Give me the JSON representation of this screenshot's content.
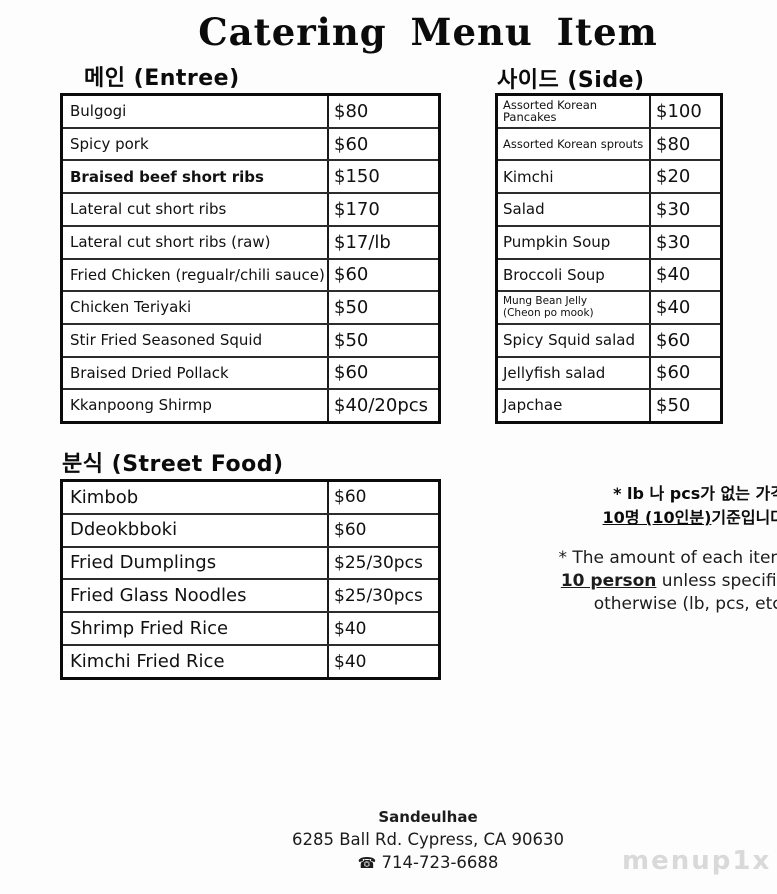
{
  "title": "Catering Menu Item",
  "sections": {
    "entree": {
      "header": "메인 (Entree)",
      "items": [
        {
          "name": "Bulgogi",
          "price": "$80"
        },
        {
          "name": "Spicy pork",
          "price": "$60"
        },
        {
          "name": "Braised beef short ribs",
          "price": "$150"
        },
        {
          "name": "Lateral cut short ribs",
          "price": "$170"
        },
        {
          "name": "Lateral cut short ribs (raw)",
          "price": "$17/lb"
        },
        {
          "name": "Fried Chicken (regualr/chili sauce)",
          "price": "$60"
        },
        {
          "name": "Chicken Teriyaki",
          "price": "$50"
        },
        {
          "name": "Stir Fried Seasoned Squid",
          "price": "$50"
        },
        {
          "name": "Braised Dried Pollack",
          "price": "$60"
        },
        {
          "name": "Kkanpoong Shirmp",
          "price": "$40/20pcs"
        }
      ]
    },
    "side": {
      "header": "사이드 (Side)",
      "items": [
        {
          "name": "Assorted Korean Pancakes",
          "price": "$100"
        },
        {
          "name": "Assorted Korean sprouts",
          "price": "$80"
        },
        {
          "name": "Kimchi",
          "price": "$20"
        },
        {
          "name": "Salad",
          "price": "$30"
        },
        {
          "name": "Pumpkin Soup",
          "price": "$30"
        },
        {
          "name": "Broccoli Soup",
          "price": "$40"
        },
        {
          "name": "Mung Bean Jelly\n(Cheon po mook)",
          "price": "$40"
        },
        {
          "name": "Spicy Squid salad",
          "price": "$60"
        },
        {
          "name": "Jellyfish salad",
          "price": "$60"
        },
        {
          "name": "Japchae",
          "price": "$50"
        }
      ]
    },
    "street": {
      "header": "분식 (Street Food)",
      "items": [
        {
          "name": "Kimbob",
          "price": "$60"
        },
        {
          "name": "Ddeokbboki",
          "price": "$60"
        },
        {
          "name": "Fried Dumplings",
          "price": "$25/30pcs"
        },
        {
          "name": "Fried Glass Noodles",
          "price": "$25/30pcs"
        },
        {
          "name": "Shrimp Fried Rice",
          "price": "$40"
        },
        {
          "name": "Kimchi Fried Rice",
          "price": "$40"
        }
      ]
    }
  },
  "notes": {
    "korean": {
      "line1": "* lb 나 pcs가 없는 가격",
      "line2_underline": "10명 (10인분)",
      "line2_rest": "기준입니다"
    },
    "english": {
      "line1": "* The amount of each item",
      "line2_bold": "10 person",
      "line2_rest": " unless specifie",
      "line3": "otherwise (lb, pcs, etc."
    }
  },
  "footer": {
    "name": "Sandeulhae",
    "address": "6285 Ball Rd. Cypress, CA 90630",
    "phone_icon": "☎",
    "phone": "714-723-6688"
  },
  "watermark": "menup1x",
  "colors": {
    "text": "#111111",
    "border": "#0b0b0b",
    "watermark": "#d9d9d9",
    "background": "#ffffff"
  }
}
